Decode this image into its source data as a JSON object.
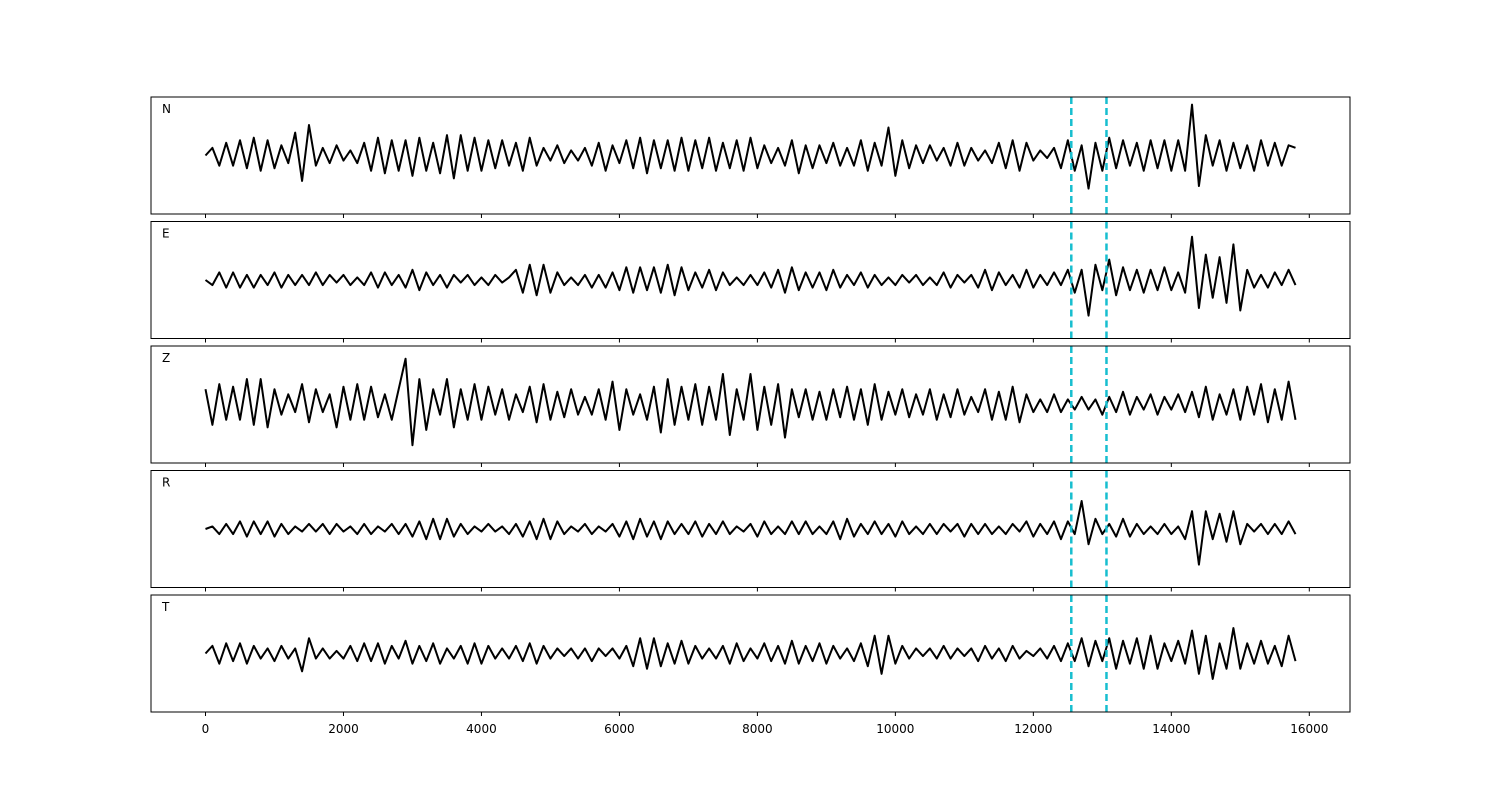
{
  "chart_data": {
    "type": "line",
    "color": "#000000",
    "xlim": [
      -790,
      16590
    ],
    "xticks": [
      0,
      2000,
      4000,
      6000,
      8000,
      10000,
      12000,
      14000,
      16000
    ],
    "markers": {
      "values": [
        12550,
        13060
      ],
      "color": "#17becf"
    },
    "x": [
      0,
      100,
      200,
      300,
      400,
      500,
      600,
      700,
      800,
      900,
      1000,
      1100,
      1200,
      1300,
      1400,
      1500,
      1600,
      1700,
      1800,
      1900,
      2000,
      2100,
      2200,
      2300,
      2400,
      2500,
      2600,
      2700,
      2800,
      2900,
      3000,
      3100,
      3200,
      3300,
      3400,
      3500,
      3600,
      3700,
      3800,
      3900,
      4000,
      4100,
      4200,
      4300,
      4400,
      4500,
      4600,
      4700,
      4800,
      4900,
      5000,
      5100,
      5200,
      5300,
      5400,
      5500,
      5600,
      5700,
      5800,
      5900,
      6000,
      6100,
      6200,
      6300,
      6400,
      6500,
      6600,
      6700,
      6800,
      6900,
      7000,
      7100,
      7200,
      7300,
      7400,
      7500,
      7600,
      7700,
      7800,
      7900,
      8000,
      8100,
      8200,
      8300,
      8400,
      8500,
      8600,
      8700,
      8800,
      8900,
      9000,
      9100,
      9200,
      9300,
      9400,
      9500,
      9600,
      9700,
      9800,
      9900,
      10000,
      10100,
      10200,
      10300,
      10400,
      10500,
      10600,
      10700,
      10800,
      10900,
      11000,
      11100,
      11200,
      11300,
      11400,
      11500,
      11600,
      11700,
      11800,
      11900,
      12000,
      12100,
      12200,
      12300,
      12400,
      12500,
      12600,
      12700,
      12800,
      12900,
      13000,
      13100,
      13200,
      13300,
      13400,
      13500,
      13600,
      13700,
      13800,
      13900,
      14000,
      14100,
      14200,
      14300,
      14400,
      14500,
      14600,
      14700,
      14800,
      14900,
      15000,
      15100,
      15200,
      15300,
      15400,
      15500,
      15600,
      15700,
      15800
    ],
    "panels": [
      {
        "label": "N",
        "ylim": [
          -1.15,
          1.15
        ],
        "values": [
          0.0,
          0.15,
          -0.2,
          0.25,
          -0.2,
          0.3,
          -0.25,
          0.35,
          -0.3,
          0.3,
          -0.25,
          0.2,
          -0.15,
          0.45,
          -0.5,
          0.6,
          -0.2,
          0.15,
          -0.15,
          0.2,
          -0.1,
          0.1,
          -0.15,
          0.25,
          -0.3,
          0.35,
          -0.35,
          0.3,
          -0.3,
          0.3,
          -0.4,
          0.35,
          -0.3,
          0.25,
          -0.35,
          0.4,
          -0.45,
          0.4,
          -0.3,
          0.35,
          -0.3,
          0.3,
          -0.25,
          0.3,
          -0.2,
          0.25,
          -0.3,
          0.35,
          -0.2,
          0.15,
          -0.1,
          0.2,
          -0.15,
          0.1,
          -0.1,
          0.15,
          -0.2,
          0.25,
          -0.3,
          0.2,
          -0.15,
          0.3,
          -0.25,
          0.35,
          -0.35,
          0.3,
          -0.25,
          0.3,
          -0.3,
          0.35,
          -0.3,
          0.3,
          -0.25,
          0.35,
          -0.3,
          0.25,
          -0.25,
          0.3,
          -0.3,
          0.35,
          -0.25,
          0.2,
          -0.15,
          0.15,
          -0.2,
          0.3,
          -0.35,
          0.2,
          -0.25,
          0.2,
          -0.15,
          0.25,
          -0.2,
          0.15,
          -0.2,
          0.3,
          -0.3,
          0.25,
          -0.2,
          0.55,
          -0.4,
          0.3,
          -0.25,
          0.2,
          -0.15,
          0.2,
          -0.1,
          0.15,
          -0.2,
          0.25,
          -0.2,
          0.15,
          -0.1,
          0.1,
          -0.15,
          0.25,
          -0.25,
          0.3,
          -0.3,
          0.25,
          -0.1,
          0.1,
          -0.05,
          0.15,
          -0.25,
          0.3,
          -0.3,
          0.2,
          -0.65,
          0.25,
          -0.3,
          0.35,
          -0.25,
          0.3,
          -0.2,
          0.25,
          -0.3,
          0.3,
          -0.25,
          0.3,
          -0.3,
          0.3,
          -0.3,
          1.0,
          -0.6,
          0.4,
          -0.2,
          0.3,
          -0.3,
          0.25,
          -0.25,
          0.2,
          -0.3,
          0.3,
          -0.2,
          0.25,
          -0.2,
          0.2,
          0.15
        ]
      },
      {
        "label": "E",
        "ylim": [
          -1.15,
          1.15
        ],
        "values": [
          0.0,
          -0.1,
          0.15,
          -0.15,
          0.15,
          -0.15,
          0.1,
          -0.15,
          0.1,
          -0.1,
          0.15,
          -0.15,
          0.1,
          -0.1,
          0.1,
          -0.1,
          0.15,
          -0.1,
          0.1,
          -0.05,
          0.1,
          -0.1,
          0.05,
          -0.1,
          0.15,
          -0.15,
          0.15,
          -0.1,
          0.1,
          -0.15,
          0.2,
          -0.2,
          0.15,
          -0.1,
          0.1,
          -0.15,
          0.1,
          -0.05,
          0.1,
          -0.1,
          0.05,
          -0.1,
          0.1,
          -0.05,
          0.05,
          0.2,
          -0.25,
          0.3,
          -0.3,
          0.3,
          -0.25,
          0.15,
          -0.1,
          0.05,
          -0.1,
          0.1,
          -0.15,
          0.1,
          -0.15,
          0.15,
          -0.2,
          0.25,
          -0.25,
          0.25,
          -0.2,
          0.25,
          -0.25,
          0.3,
          -0.3,
          0.25,
          -0.2,
          0.15,
          -0.15,
          0.2,
          -0.2,
          0.15,
          -0.1,
          0.05,
          -0.1,
          0.1,
          -0.1,
          0.15,
          -0.15,
          0.2,
          -0.25,
          0.25,
          -0.2,
          0.15,
          -0.15,
          0.15,
          -0.2,
          0.2,
          -0.15,
          0.1,
          -0.1,
          0.15,
          -0.15,
          0.1,
          -0.1,
          0.05,
          -0.1,
          0.1,
          -0.05,
          0.1,
          -0.1,
          0.05,
          -0.1,
          0.15,
          -0.15,
          0.1,
          -0.05,
          0.1,
          -0.15,
          0.2,
          -0.2,
          0.15,
          -0.1,
          0.1,
          -0.15,
          0.2,
          -0.15,
          0.1,
          -0.1,
          0.15,
          -0.1,
          0.2,
          -0.25,
          0.2,
          -0.7,
          0.3,
          -0.2,
          0.4,
          -0.3,
          0.25,
          -0.2,
          0.2,
          -0.25,
          0.2,
          -0.2,
          0.25,
          -0.2,
          0.15,
          -0.25,
          0.85,
          -0.55,
          0.5,
          -0.35,
          0.45,
          -0.45,
          0.7,
          -0.6,
          0.2,
          -0.15,
          0.1,
          -0.15,
          0.15,
          -0.1,
          0.2,
          -0.1
        ]
      },
      {
        "label": "Z",
        "ylim": [
          -1.15,
          1.15
        ],
        "values": [
          0.3,
          -0.4,
          0.4,
          -0.3,
          0.35,
          -0.3,
          0.5,
          -0.4,
          0.5,
          -0.45,
          0.3,
          -0.2,
          0.2,
          -0.15,
          0.4,
          -0.35,
          0.3,
          -0.15,
          0.2,
          -0.45,
          0.35,
          -0.3,
          0.4,
          -0.3,
          0.35,
          -0.25,
          0.2,
          -0.3,
          0.3,
          0.9,
          -0.8,
          0.5,
          -0.5,
          0.3,
          -0.2,
          0.5,
          -0.45,
          0.3,
          -0.3,
          0.4,
          -0.3,
          0.35,
          -0.2,
          0.3,
          -0.3,
          0.2,
          -0.15,
          0.35,
          -0.35,
          0.4,
          -0.3,
          0.25,
          -0.25,
          0.3,
          -0.2,
          0.15,
          -0.2,
          0.3,
          -0.3,
          0.45,
          -0.5,
          0.3,
          -0.2,
          0.2,
          -0.3,
          0.35,
          -0.55,
          0.5,
          -0.4,
          0.35,
          -0.3,
          0.4,
          -0.4,
          0.35,
          -0.3,
          0.6,
          -0.6,
          0.3,
          -0.3,
          0.6,
          -0.5,
          0.35,
          -0.4,
          0.4,
          -0.65,
          0.3,
          -0.25,
          0.3,
          -0.3,
          0.25,
          -0.3,
          0.3,
          -0.25,
          0.35,
          -0.3,
          0.3,
          -0.4,
          0.4,
          -0.3,
          0.25,
          -0.2,
          0.3,
          -0.25,
          0.2,
          -0.2,
          0.3,
          -0.3,
          0.2,
          -0.25,
          0.3,
          -0.2,
          0.15,
          -0.15,
          0.3,
          -0.3,
          0.25,
          -0.3,
          0.35,
          -0.35,
          0.2,
          -0.15,
          0.1,
          -0.15,
          0.2,
          -0.15,
          0.1,
          -0.1,
          0.15,
          -0.1,
          0.1,
          -0.2,
          0.15,
          -0.15,
          0.25,
          -0.2,
          0.15,
          -0.1,
          0.2,
          -0.2,
          0.15,
          -0.1,
          0.2,
          -0.15,
          0.25,
          -0.25,
          0.35,
          -0.3,
          0.2,
          -0.2,
          0.3,
          -0.3,
          0.35,
          -0.2,
          0.4,
          -0.35,
          0.3,
          -0.3,
          0.45,
          -0.3
        ]
      },
      {
        "label": "R",
        "ylim": [
          -1.15,
          1.15
        ],
        "values": [
          0.0,
          0.05,
          -0.1,
          0.1,
          -0.1,
          0.15,
          -0.15,
          0.15,
          -0.1,
          0.15,
          -0.15,
          0.1,
          -0.1,
          0.05,
          -0.05,
          0.1,
          -0.05,
          0.1,
          -0.1,
          0.1,
          -0.05,
          0.05,
          -0.1,
          0.1,
          -0.1,
          0.05,
          -0.05,
          0.1,
          -0.1,
          0.1,
          -0.15,
          0.15,
          -0.2,
          0.2,
          -0.2,
          0.2,
          -0.15,
          0.1,
          -0.1,
          0.05,
          -0.05,
          0.1,
          -0.05,
          0.05,
          -0.1,
          0.1,
          -0.15,
          0.15,
          -0.2,
          0.2,
          -0.2,
          0.15,
          -0.1,
          0.05,
          -0.05,
          0.1,
          -0.1,
          0.05,
          -0.05,
          0.1,
          -0.15,
          0.15,
          -0.2,
          0.2,
          -0.15,
          0.15,
          -0.2,
          0.15,
          -0.1,
          0.1,
          -0.1,
          0.15,
          -0.15,
          0.1,
          -0.1,
          0.15,
          -0.1,
          0.05,
          -0.05,
          0.1,
          -0.15,
          0.15,
          -0.1,
          0.05,
          -0.1,
          0.15,
          -0.1,
          0.15,
          -0.1,
          0.05,
          -0.1,
          0.15,
          -0.2,
          0.2,
          -0.15,
          0.1,
          -0.1,
          0.15,
          -0.1,
          0.1,
          -0.15,
          0.15,
          -0.1,
          0.05,
          -0.1,
          0.1,
          -0.1,
          0.1,
          -0.05,
          0.1,
          -0.15,
          0.1,
          -0.1,
          0.1,
          -0.1,
          0.05,
          -0.1,
          0.1,
          -0.05,
          0.15,
          -0.15,
          0.1,
          -0.1,
          0.15,
          -0.2,
          0.15,
          -0.1,
          0.55,
          -0.3,
          0.2,
          -0.1,
          0.1,
          -0.15,
          0.2,
          -0.15,
          0.1,
          -0.1,
          0.05,
          -0.1,
          0.1,
          -0.1,
          0.05,
          -0.2,
          0.35,
          -0.7,
          0.35,
          -0.2,
          0.3,
          -0.25,
          0.35,
          -0.3,
          0.1,
          -0.05,
          0.1,
          -0.1,
          0.1,
          -0.1,
          0.15,
          -0.1
        ]
      },
      {
        "label": "T",
        "ylim": [
          -1.15,
          1.15
        ],
        "values": [
          0.0,
          0.15,
          -0.2,
          0.2,
          -0.15,
          0.2,
          -0.2,
          0.15,
          -0.1,
          0.1,
          -0.15,
          0.15,
          -0.1,
          0.1,
          -0.35,
          0.3,
          -0.1,
          0.1,
          -0.1,
          0.05,
          -0.1,
          0.15,
          -0.15,
          0.2,
          -0.15,
          0.2,
          -0.2,
          0.15,
          -0.1,
          0.25,
          -0.2,
          0.15,
          -0.15,
          0.2,
          -0.2,
          0.1,
          -0.1,
          0.15,
          -0.2,
          0.2,
          -0.2,
          0.15,
          -0.1,
          0.1,
          -0.1,
          0.15,
          -0.15,
          0.2,
          -0.2,
          0.15,
          -0.1,
          0.1,
          -0.05,
          0.1,
          -0.1,
          0.1,
          -0.15,
          0.1,
          -0.05,
          0.1,
          -0.1,
          0.15,
          -0.25,
          0.3,
          -0.3,
          0.3,
          -0.25,
          0.2,
          -0.2,
          0.25,
          -0.2,
          0.15,
          -0.1,
          0.1,
          -0.1,
          0.15,
          -0.2,
          0.2,
          -0.15,
          0.1,
          -0.1,
          0.2,
          -0.15,
          0.15,
          -0.2,
          0.25,
          -0.2,
          0.15,
          -0.15,
          0.2,
          -0.2,
          0.15,
          -0.1,
          0.1,
          -0.15,
          0.2,
          -0.25,
          0.35,
          -0.4,
          0.35,
          -0.2,
          0.15,
          -0.1,
          0.1,
          -0.05,
          0.1,
          -0.1,
          0.15,
          -0.1,
          0.1,
          -0.05,
          0.1,
          -0.15,
          0.15,
          -0.1,
          0.1,
          -0.15,
          0.15,
          -0.1,
          0.05,
          -0.05,
          0.1,
          -0.1,
          0.15,
          -0.15,
          0.2,
          -0.15,
          0.3,
          -0.25,
          0.25,
          -0.15,
          0.3,
          -0.3,
          0.25,
          -0.2,
          0.3,
          -0.3,
          0.35,
          -0.3,
          0.2,
          -0.15,
          0.25,
          -0.2,
          0.45,
          -0.4,
          0.35,
          -0.5,
          0.2,
          -0.3,
          0.5,
          -0.3,
          0.2,
          -0.2,
          0.25,
          -0.2,
          0.15,
          -0.25,
          0.35,
          -0.15
        ]
      }
    ]
  }
}
